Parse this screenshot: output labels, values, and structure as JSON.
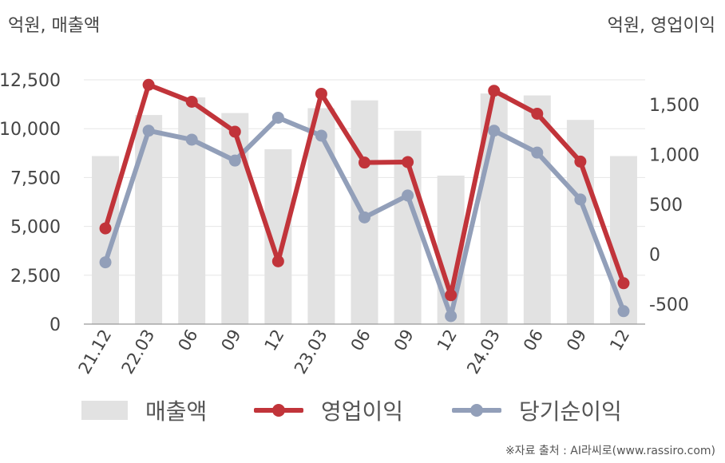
{
  "unit_left": "억원, 매출액",
  "unit_right": "억원, 영업이익",
  "source": "※자료 출처 : AI라씨로(www.rassiro.com)",
  "colors": {
    "bar": "#e2e2e2",
    "operating_profit": "#c1343a",
    "net_income": "#929fb9",
    "grid": "#e6e6e6",
    "axis": "#999999"
  },
  "chart_data": {
    "type": "bar+line",
    "categories": [
      "21.12",
      "22.03",
      "06",
      "09",
      "12",
      "23.03",
      "06",
      "09",
      "12",
      "24.03",
      "06",
      "09",
      "12"
    ],
    "y_left": {
      "label": "억원, 매출액",
      "ticks": [
        0,
        2500,
        5000,
        7500,
        10000,
        12500
      ],
      "tick_labels": [
        "0",
        "2,500",
        "5,000",
        "7,500",
        "10,000",
        "12,500"
      ],
      "range": [
        0,
        12500
      ]
    },
    "y_right": {
      "label": "억원, 영업이익",
      "ticks": [
        -500,
        0,
        500,
        1000,
        1500
      ],
      "tick_labels": [
        "-500",
        "0",
        "500",
        "1,000",
        "1,500"
      ],
      "range": [
        -700,
        1750
      ]
    },
    "series": [
      {
        "name": "매출액",
        "type": "bar",
        "axis": "left",
        "values": [
          8600,
          10700,
          11600,
          10800,
          8950,
          11050,
          11450,
          9900,
          7600,
          11800,
          11700,
          10450,
          8600
        ]
      },
      {
        "name": "영업이익",
        "type": "line",
        "axis": "right",
        "values": [
          260,
          1700,
          1530,
          1230,
          -70,
          1610,
          920,
          925,
          -410,
          1640,
          1410,
          930,
          -290
        ]
      },
      {
        "name": "당기순이익",
        "type": "line",
        "axis": "right",
        "values": [
          -80,
          1240,
          1150,
          940,
          1370,
          1190,
          370,
          590,
          -620,
          1240,
          1020,
          550,
          -570
        ]
      }
    ]
  }
}
